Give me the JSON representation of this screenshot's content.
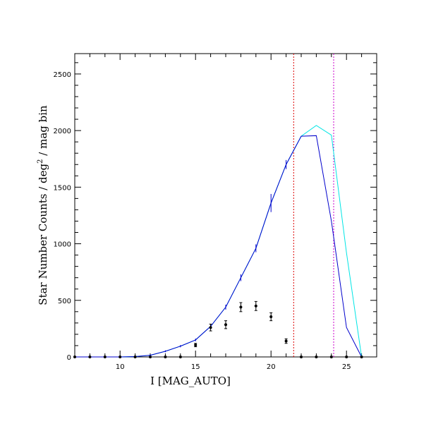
{
  "chart_data": {
    "type": "line",
    "xlabel": "I [MAG_AUTO]",
    "ylabel_parts": [
      "Star Number Counts / deg",
      "2",
      " / mag bin"
    ],
    "xlim": [
      7,
      27
    ],
    "ylim": [
      0,
      2680
    ],
    "x_ticks": [
      10,
      15,
      20,
      25
    ],
    "y_ticks": [
      0,
      500,
      1000,
      1500,
      2000,
      2500
    ],
    "series": [
      {
        "color": "#00e5e5",
        "x": [
          7,
          8,
          9,
          10,
          11,
          12,
          13,
          14,
          15,
          16,
          17,
          18,
          19,
          20,
          21,
          22,
          23,
          24,
          25,
          26
        ],
        "y": [
          0,
          0,
          0,
          0,
          3,
          15,
          50,
          95,
          150,
          270,
          440,
          700,
          960,
          1360,
          1700,
          1950,
          2045,
          1960,
          920,
          0
        ]
      },
      {
        "color": "#0000cc",
        "x": [
          7,
          8,
          9,
          10,
          11,
          12,
          13,
          14,
          15,
          16,
          17,
          18,
          19,
          20,
          21,
          22,
          23,
          24,
          25,
          26
        ],
        "y": [
          0,
          0,
          0,
          0,
          3,
          15,
          50,
          95,
          150,
          270,
          440,
          700,
          960,
          1360,
          1700,
          1950,
          1955,
          1200,
          260,
          0
        ],
        "errors": [
          0,
          0,
          0,
          0,
          4,
          6,
          8,
          10,
          12,
          18,
          22,
          30,
          35,
          80,
          40,
          0,
          0,
          0,
          0,
          0
        ]
      },
      {
        "color": "#000000",
        "style": "points",
        "x": [
          7,
          8,
          9,
          10,
          11,
          12,
          13,
          14,
          15,
          16,
          17,
          18,
          19,
          20,
          21,
          22,
          23,
          24,
          25,
          26
        ],
        "y": [
          0,
          0,
          0,
          0,
          0,
          0,
          0,
          0,
          105,
          260,
          285,
          440,
          450,
          355,
          140,
          0,
          0,
          0,
          0,
          0
        ],
        "errors": [
          0,
          0,
          0,
          0,
          0,
          0,
          0,
          0,
          15,
          30,
          35,
          40,
          40,
          35,
          20,
          0,
          0,
          0,
          0,
          0
        ]
      }
    ],
    "vlines": [
      {
        "x": 21.5,
        "color": "#dd0000"
      },
      {
        "x": 24.15,
        "color": "#cc00cc"
      }
    ]
  }
}
